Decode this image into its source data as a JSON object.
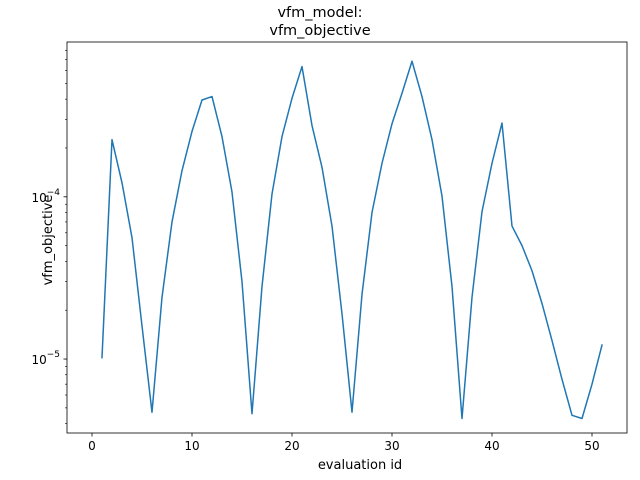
{
  "chart_data": {
    "type": "line",
    "title": "vfm_model:\nvfm_objective",
    "title_lines": [
      "vfm_model:",
      "vfm_objective"
    ],
    "xlabel": "evaluation id",
    "ylabel": "vfm_objective",
    "yscale": "log",
    "xlim": [
      -2.5,
      53.5
    ],
    "ylim": [
      3.5e-06,
      0.0009
    ],
    "x_ticks": [
      0,
      10,
      20,
      30,
      40,
      50
    ],
    "y_major_ticks": [
      {
        "value": 1e-05,
        "base": "10",
        "exp": "−5"
      },
      {
        "value": 0.0001,
        "base": "10",
        "exp": "−4"
      }
    ],
    "grid": false,
    "legend": "none",
    "line_color": "#1f77b4",
    "series": [
      {
        "x": [
          1,
          2,
          3,
          4,
          5,
          6,
          7,
          8,
          9,
          10,
          11,
          12,
          13,
          14,
          15,
          16,
          17,
          18,
          19,
          20,
          21,
          22,
          23,
          24,
          25,
          26,
          27,
          28,
          29,
          30,
          31,
          32,
          33,
          34,
          35,
          36,
          37,
          38,
          39,
          40,
          41,
          42,
          43,
          44,
          45,
          46,
          47,
          48,
          49,
          50,
          51
        ],
        "values": [
          1.02e-05,
          0.000225,
          0.000122,
          5.6e-05,
          1.6e-05,
          4.7e-06,
          2.4e-05,
          7e-05,
          0.000145,
          0.000253,
          0.000395,
          0.000415,
          0.000235,
          0.000107,
          3e-05,
          4.6e-06,
          2.8e-05,
          0.000104,
          0.000235,
          0.000405,
          0.000635,
          0.000275,
          0.000152,
          6.6e-05,
          1.9e-05,
          4.7e-06,
          2.5e-05,
          8e-05,
          0.000161,
          0.000282,
          0.000435,
          0.000685,
          0.000415,
          0.000225,
          0.000101,
          2.8e-05,
          4.3e-06,
          2.4e-05,
          8.1e-05,
          0.000161,
          0.000285,
          6.6e-05,
          5e-05,
          3.5e-05,
          2.2e-05,
          1.3e-05,
          7.5e-06,
          4.5e-06,
          4.3e-06,
          7e-06,
          1.22e-05
        ]
      }
    ]
  }
}
